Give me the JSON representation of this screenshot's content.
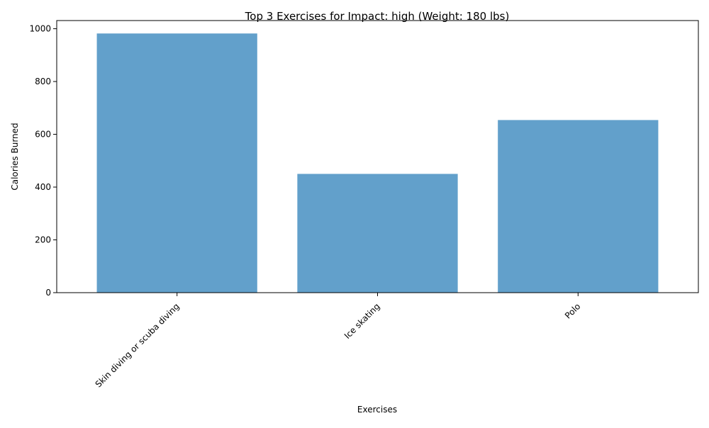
{
  "chart_data": {
    "type": "bar",
    "title": "Top 3 Exercises for Impact: high (Weight: 180 lbs)",
    "xlabel": "Exercises",
    "ylabel": "Calories Burned",
    "categories": [
      "Skin diving or scuba diving",
      "Ice skating",
      "Polo"
    ],
    "values": [
      982,
      450,
      654
    ],
    "ylim": [
      0,
      1031
    ],
    "yticks": [
      0,
      200,
      400,
      600,
      800,
      1000
    ],
    "ytick_labels": [
      "0",
      "200",
      "400",
      "600",
      "800",
      "1000"
    ],
    "bar_color": "#62a0cb",
    "grid": false,
    "legend": false
  }
}
